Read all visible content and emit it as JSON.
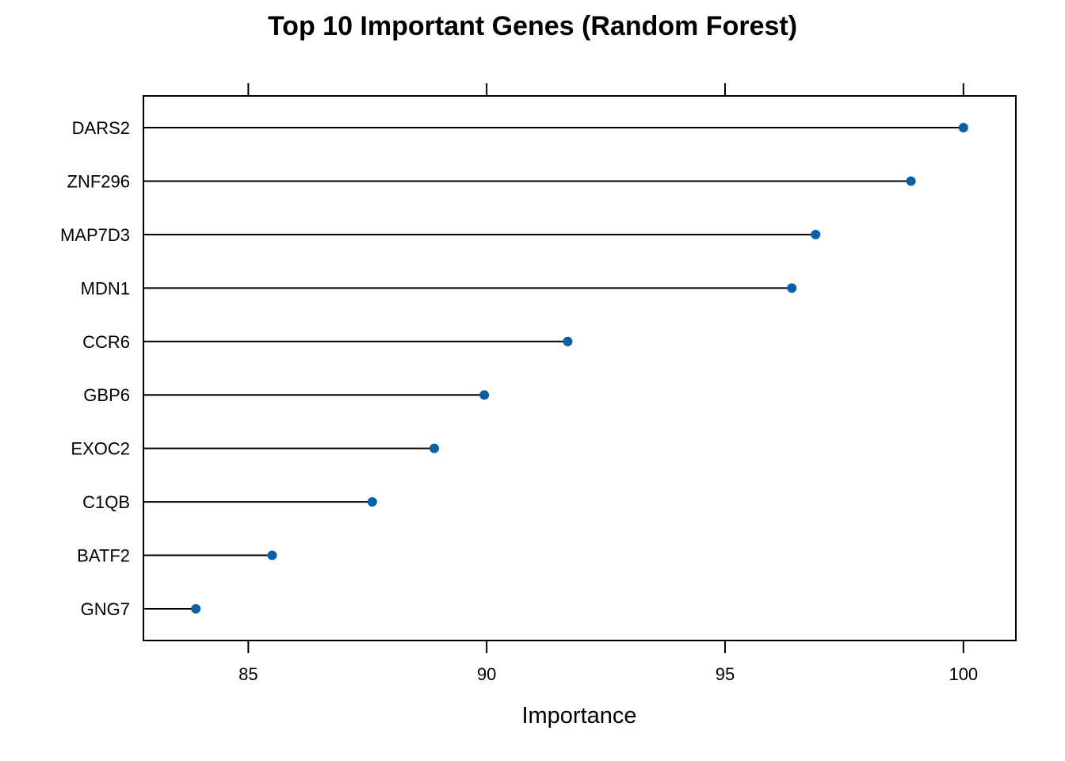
{
  "chart_data": {
    "type": "dot",
    "title": "Top 10 Important Genes (Random Forest)",
    "xlabel": "Importance",
    "ylabel": "",
    "xlim": [
      82.8,
      101.1
    ],
    "xticks": [
      85,
      90,
      95,
      100
    ],
    "xtick_labels": [
      "85",
      "90",
      "95",
      "100"
    ],
    "categories": [
      "DARS2",
      "ZNF296",
      "MAP7D3",
      "MDN1",
      "CCR6",
      "GBP6",
      "EXOC2",
      "C1QB",
      "BATF2",
      "GNG7"
    ],
    "values": [
      100.0,
      98.9,
      96.9,
      96.4,
      91.7,
      89.95,
      88.9,
      87.6,
      85.5,
      83.9
    ],
    "grid": false,
    "legend": "none",
    "point_color": "#0A5FA6",
    "line_color": "#000000"
  }
}
